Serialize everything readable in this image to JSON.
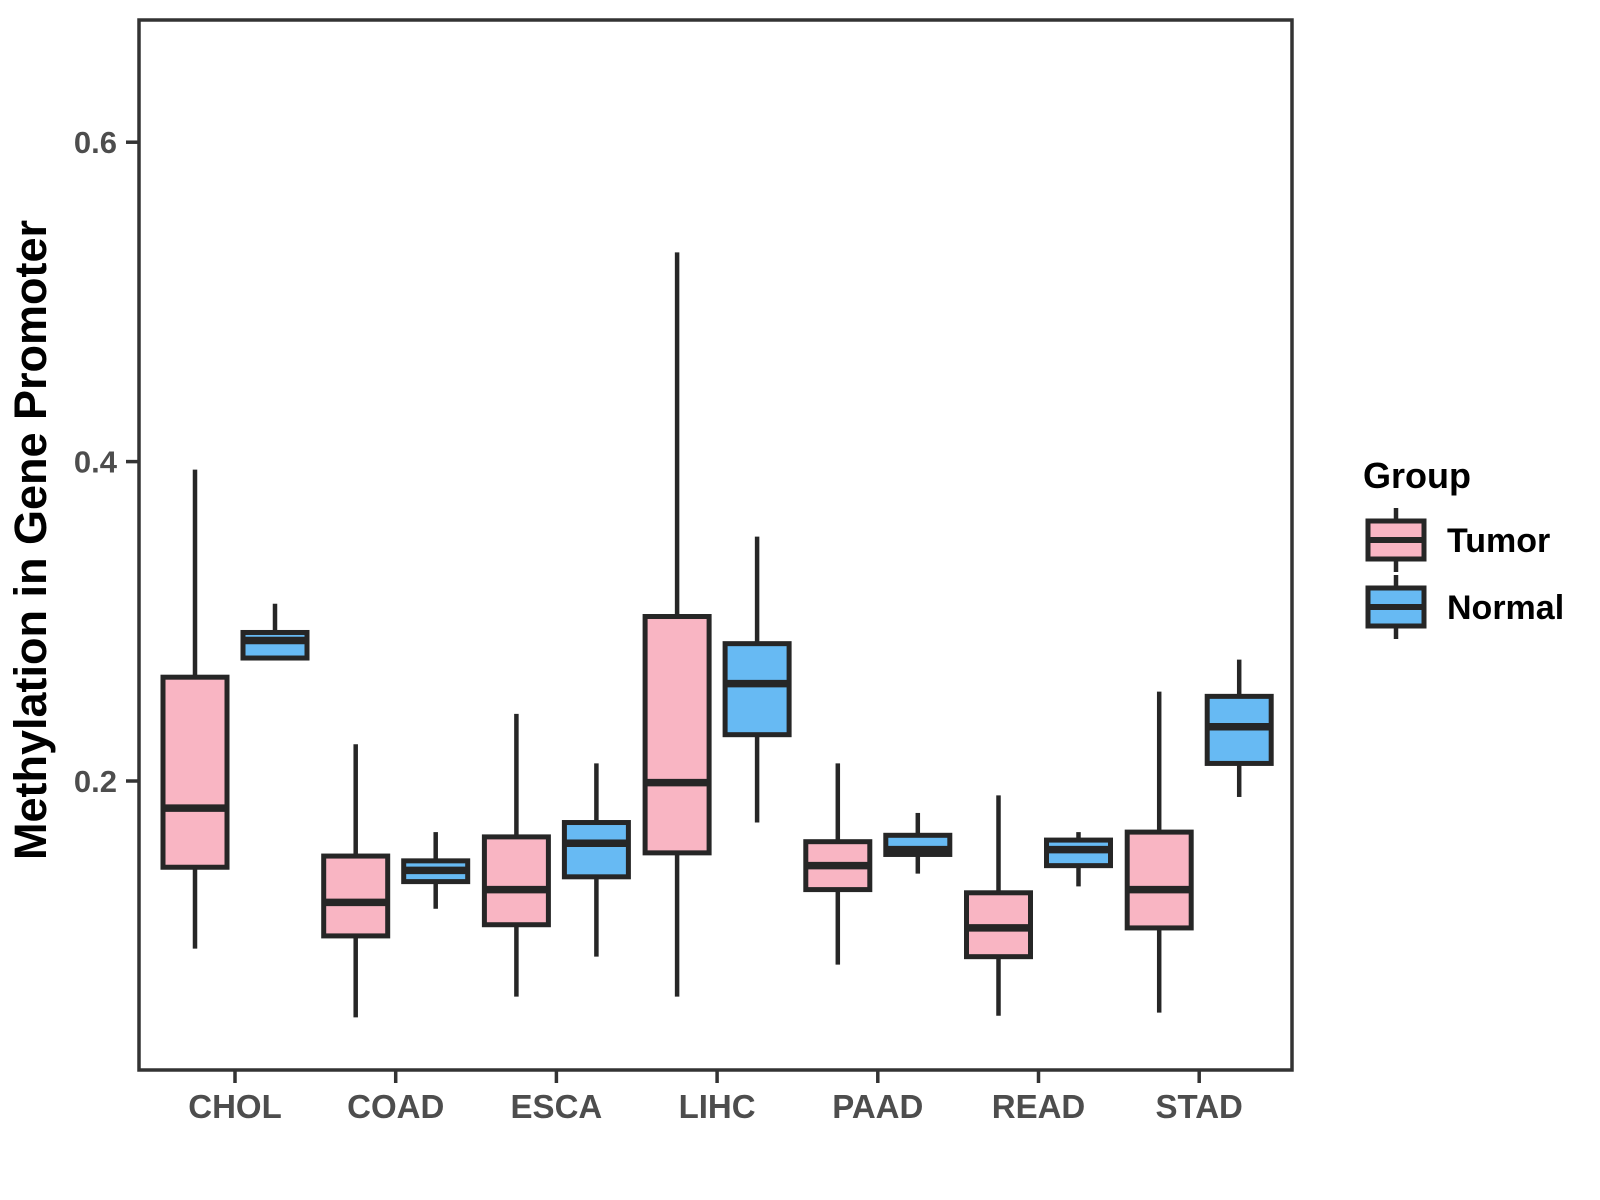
{
  "chart_data": {
    "type": "boxplot",
    "title": "",
    "xlabel": "",
    "ylabel": "Methylation in Gene Promoter",
    "categories": [
      "CHOL",
      "COAD",
      "ESCA",
      "LIHC",
      "PAAD",
      "READ",
      "STAD"
    ],
    "y_ticks": [
      "0.2",
      "0.4",
      "0.6"
    ],
    "y_tick_values": [
      0.2,
      0.4,
      0.6
    ],
    "ylim": [
      0.019,
      0.677
    ],
    "grid": "off",
    "legend_position": "right",
    "legend_title": "Group",
    "series": [
      {
        "name": "Tumor",
        "fill_color": "#F9B5C3",
        "boxes": [
          {
            "category": "CHOL",
            "whisker_low": 0.095,
            "q1": 0.146,
            "median": 0.183,
            "q3": 0.265,
            "whisker_high": 0.395
          },
          {
            "category": "COAD",
            "whisker_low": 0.052,
            "q1": 0.103,
            "median": 0.124,
            "q3": 0.153,
            "whisker_high": 0.223
          },
          {
            "category": "ESCA",
            "whisker_low": 0.065,
            "q1": 0.11,
            "median": 0.132,
            "q3": 0.165,
            "whisker_high": 0.242
          },
          {
            "category": "LIHC",
            "whisker_low": 0.065,
            "q1": 0.155,
            "median": 0.199,
            "q3": 0.303,
            "whisker_high": 0.531
          },
          {
            "category": "PAAD",
            "whisker_low": 0.085,
            "q1": 0.132,
            "median": 0.147,
            "q3": 0.162,
            "whisker_high": 0.211
          },
          {
            "category": "READ",
            "whisker_low": 0.053,
            "q1": 0.09,
            "median": 0.108,
            "q3": 0.13,
            "whisker_high": 0.191
          },
          {
            "category": "STAD",
            "whisker_low": 0.055,
            "q1": 0.108,
            "median": 0.132,
            "q3": 0.168,
            "whisker_high": 0.256
          }
        ]
      },
      {
        "name": "Normal",
        "fill_color": "#67BAF3",
        "boxes": [
          {
            "category": "CHOL",
            "whisker_low": 0.277,
            "q1": 0.277,
            "median": 0.288,
            "q3": 0.293,
            "whisker_high": 0.311
          },
          {
            "category": "COAD",
            "whisker_low": 0.12,
            "q1": 0.137,
            "median": 0.144,
            "q3": 0.15,
            "whisker_high": 0.168
          },
          {
            "category": "ESCA",
            "whisker_low": 0.09,
            "q1": 0.14,
            "median": 0.161,
            "q3": 0.174,
            "whisker_high": 0.211
          },
          {
            "category": "LIHC",
            "whisker_low": 0.174,
            "q1": 0.229,
            "median": 0.261,
            "q3": 0.286,
            "whisker_high": 0.353
          },
          {
            "category": "PAAD",
            "whisker_low": 0.142,
            "q1": 0.154,
            "median": 0.157,
            "q3": 0.166,
            "whisker_high": 0.18
          },
          {
            "category": "READ",
            "whisker_low": 0.134,
            "q1": 0.147,
            "median": 0.157,
            "q3": 0.163,
            "whisker_high": 0.168
          },
          {
            "category": "STAD",
            "whisker_low": 0.19,
            "q1": 0.211,
            "median": 0.234,
            "q3": 0.253,
            "whisker_high": 0.276
          }
        ]
      }
    ],
    "colors": {
      "box_stroke": "#262626",
      "panel_border": "#333333",
      "tick_color": "#333333",
      "tick_label_color": "#4D4D4D",
      "axis_title_color": "#000000",
      "legend_text_color": "#000000",
      "background": "#FFFFFF"
    }
  }
}
